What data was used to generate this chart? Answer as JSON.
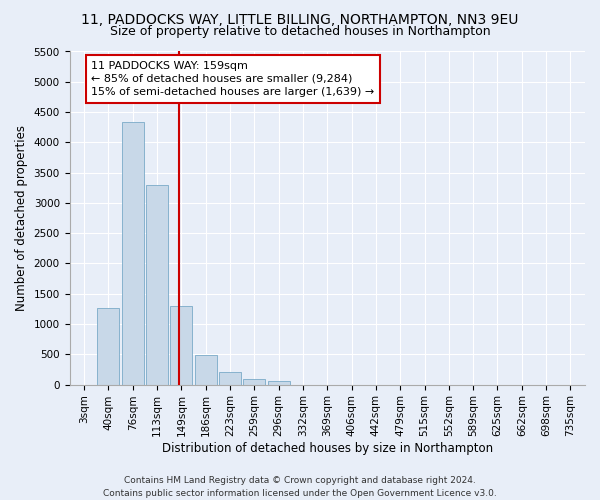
{
  "title": "11, PADDOCKS WAY, LITTLE BILLING, NORTHAMPTON, NN3 9EU",
  "subtitle": "Size of property relative to detached houses in Northampton",
  "xlabel": "Distribution of detached houses by size in Northampton",
  "ylabel": "Number of detached properties",
  "bar_color": "#c8d8e8",
  "bar_edge_color": "#7aaac8",
  "background_color": "#e8eef8",
  "grid_color": "#ffffff",
  "categories": [
    "3sqm",
    "40sqm",
    "76sqm",
    "113sqm",
    "149sqm",
    "186sqm",
    "223sqm",
    "259sqm",
    "296sqm",
    "332sqm",
    "369sqm",
    "406sqm",
    "442sqm",
    "479sqm",
    "515sqm",
    "552sqm",
    "589sqm",
    "625sqm",
    "662sqm",
    "698sqm",
    "735sqm"
  ],
  "values": [
    0,
    1270,
    4330,
    3300,
    1290,
    490,
    215,
    90,
    60,
    0,
    0,
    0,
    0,
    0,
    0,
    0,
    0,
    0,
    0,
    0,
    0
  ],
  "ylim": [
    0,
    5500
  ],
  "yticks": [
    0,
    500,
    1000,
    1500,
    2000,
    2500,
    3000,
    3500,
    4000,
    4500,
    5000,
    5500
  ],
  "annotation_line1": "11 PADDOCKS WAY: 159sqm",
  "annotation_line2": "← 85% of detached houses are smaller (9,284)",
  "annotation_line3": "15% of semi-detached houses are larger (1,639) →",
  "annotation_box_color": "#ffffff",
  "annotation_box_edge": "#cc0000",
  "vline_color": "#cc0000",
  "footnote": "Contains HM Land Registry data © Crown copyright and database right 2024.\nContains public sector information licensed under the Open Government Licence v3.0.",
  "title_fontsize": 10,
  "subtitle_fontsize": 9,
  "axis_label_fontsize": 8.5,
  "tick_fontsize": 7.5,
  "annot_fontsize": 8,
  "footnote_fontsize": 6.5
}
